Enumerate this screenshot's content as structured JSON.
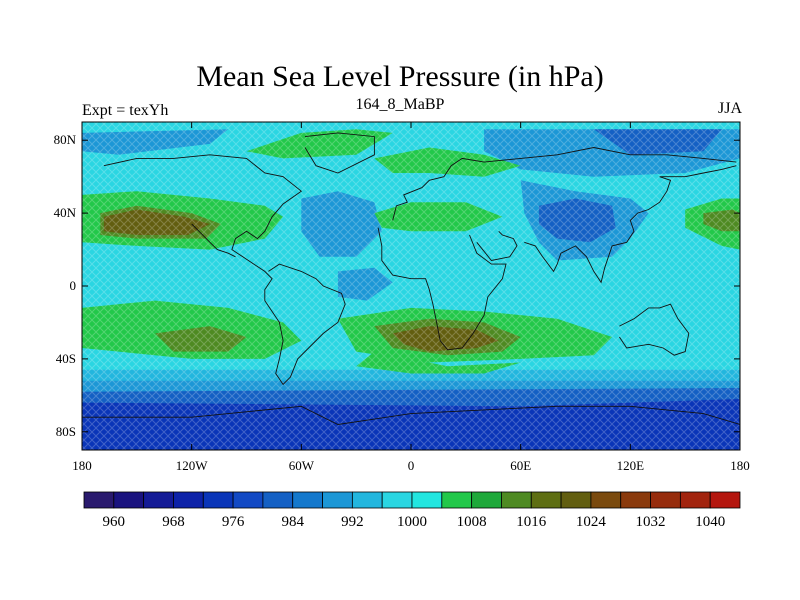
{
  "title": "Mean Sea Level Pressure (in hPa)",
  "left_label": "Expt = texYh",
  "center_label": "164_8_MaBP",
  "right_label": "JJA",
  "map": {
    "projection": "cylindrical-equidistant",
    "lon_range": [
      -180,
      180
    ],
    "lat_range": [
      -90,
      90
    ],
    "x_ticks": [
      {
        "value": -180,
        "label": "180"
      },
      {
        "value": -120,
        "label": "120W"
      },
      {
        "value": -60,
        "label": "60W"
      },
      {
        "value": 0,
        "label": "0"
      },
      {
        "value": 60,
        "label": "60E"
      },
      {
        "value": 120,
        "label": "120E"
      },
      {
        "value": 180,
        "label": "180"
      }
    ],
    "y_ticks": [
      {
        "value": 80,
        "label": "80N"
      },
      {
        "value": 40,
        "label": "40N"
      },
      {
        "value": 0,
        "label": "0"
      },
      {
        "value": -40,
        "label": "40S"
      },
      {
        "value": -80,
        "label": "80S"
      }
    ]
  },
  "colorbar": {
    "min": 956,
    "max": 1044,
    "step": 4,
    "colors": [
      "#2a1a6e",
      "#1a137f",
      "#141b96",
      "#0d22a8",
      "#0a35b8",
      "#1249c4",
      "#1460c4",
      "#1478cc",
      "#1c97d6",
      "#22b6de",
      "#2ad6e2",
      "#22e6e0",
      "#22c84a",
      "#1ea83a",
      "#4e8a22",
      "#5e6e12",
      "#625e10",
      "#7a4a0e",
      "#8a3a0c",
      "#962c0c",
      "#a2240e",
      "#b4160e"
    ],
    "labels": [
      {
        "value": 960,
        "label": "960"
      },
      {
        "value": 968,
        "label": "968"
      },
      {
        "value": 976,
        "label": "976"
      },
      {
        "value": 984,
        "label": "984"
      },
      {
        "value": 992,
        "label": "992"
      },
      {
        "value": 1000,
        "label": "1000"
      },
      {
        "value": 1008,
        "label": "1008"
      },
      {
        "value": 1016,
        "label": "1016"
      },
      {
        "value": 1024,
        "label": "1024"
      },
      {
        "value": 1032,
        "label": "1032"
      },
      {
        "value": 1040,
        "label": "1040"
      }
    ]
  },
  "pressure_field": [
    {
      "level": 996,
      "regions": [
        [
          [
            -180,
            90
          ],
          [
            180,
            90
          ],
          [
            180,
            -90
          ],
          [
            -180,
            -90
          ]
        ]
      ]
    },
    {
      "level": 992,
      "regions": [
        [
          [
            -180,
            -46
          ],
          [
            180,
            -46
          ],
          [
            180,
            -90
          ],
          [
            -180,
            -90
          ]
        ]
      ]
    },
    {
      "level": 988,
      "regions": [
        [
          [
            -180,
            -52
          ],
          [
            180,
            -52
          ],
          [
            180,
            -90
          ],
          [
            -180,
            -90
          ]
        ]
      ]
    },
    {
      "level": 980,
      "regions": [
        [
          [
            -180,
            -58
          ],
          [
            180,
            -56
          ],
          [
            180,
            -90
          ],
          [
            -180,
            -90
          ]
        ]
      ]
    },
    {
      "level": 972,
      "regions": [
        [
          [
            -180,
            -64
          ],
          [
            60,
            -66
          ],
          [
            180,
            -62
          ],
          [
            180,
            -90
          ],
          [
            -180,
            -90
          ]
        ]
      ]
    },
    {
      "level": 988,
      "regions": [
        [
          [
            -180,
            84
          ],
          [
            -100,
            86
          ],
          [
            -110,
            78
          ],
          [
            -160,
            72
          ],
          [
            -180,
            74
          ]
        ],
        [
          [
            40,
            86
          ],
          [
            180,
            86
          ],
          [
            180,
            70
          ],
          [
            150,
            62
          ],
          [
            100,
            60
          ],
          [
            60,
            64
          ],
          [
            40,
            74
          ]
        ],
        [
          [
            60,
            58
          ],
          [
            90,
            52
          ],
          [
            120,
            48
          ],
          [
            130,
            40
          ],
          [
            120,
            26
          ],
          [
            110,
            16
          ],
          [
            80,
            14
          ],
          [
            70,
            24
          ],
          [
            62,
            40
          ]
        ],
        [
          [
            -60,
            48
          ],
          [
            -40,
            52
          ],
          [
            -20,
            46
          ],
          [
            -16,
            30
          ],
          [
            -30,
            16
          ],
          [
            -50,
            16
          ],
          [
            -60,
            30
          ]
        ],
        [
          [
            -40,
            8
          ],
          [
            -20,
            10
          ],
          [
            -10,
            2
          ],
          [
            -24,
            -8
          ],
          [
            -40,
            -6
          ]
        ]
      ]
    },
    {
      "level": 980,
      "regions": [
        [
          [
            70,
            44
          ],
          [
            90,
            48
          ],
          [
            110,
            44
          ],
          [
            112,
            32
          ],
          [
            98,
            24
          ],
          [
            80,
            26
          ],
          [
            70,
            34
          ]
        ],
        [
          [
            100,
            86
          ],
          [
            170,
            86
          ],
          [
            160,
            74
          ],
          [
            120,
            72
          ]
        ]
      ]
    },
    {
      "level": 1004,
      "regions": [
        [
          [
            -180,
            50
          ],
          [
            -150,
            52
          ],
          [
            -110,
            48
          ],
          [
            -80,
            44
          ],
          [
            -70,
            38
          ],
          [
            -80,
            26
          ],
          [
            -110,
            20
          ],
          [
            -150,
            22
          ],
          [
            -180,
            24
          ]
        ],
        [
          [
            150,
            42
          ],
          [
            170,
            48
          ],
          [
            180,
            48
          ],
          [
            180,
            20
          ],
          [
            170,
            22
          ],
          [
            150,
            32
          ]
        ],
        [
          [
            -60,
            84
          ],
          [
            -30,
            86
          ],
          [
            -10,
            84
          ],
          [
            -30,
            72
          ],
          [
            -70,
            70
          ],
          [
            -90,
            74
          ]
        ],
        [
          [
            -20,
            70
          ],
          [
            10,
            76
          ],
          [
            40,
            72
          ],
          [
            60,
            66
          ],
          [
            40,
            60
          ],
          [
            10,
            62
          ],
          [
            -10,
            62
          ]
        ],
        [
          [
            -20,
            40
          ],
          [
            0,
            46
          ],
          [
            30,
            46
          ],
          [
            50,
            38
          ],
          [
            30,
            30
          ],
          [
            0,
            30
          ],
          [
            -16,
            32
          ]
        ],
        [
          [
            -180,
            -12
          ],
          [
            -140,
            -8
          ],
          [
            -100,
            -12
          ],
          [
            -70,
            -20
          ],
          [
            -60,
            -30
          ],
          [
            -80,
            -40
          ],
          [
            -120,
            -40
          ],
          [
            -160,
            -36
          ],
          [
            -180,
            -34
          ]
        ],
        [
          [
            -40,
            -18
          ],
          [
            0,
            -12
          ],
          [
            40,
            -14
          ],
          [
            80,
            -18
          ],
          [
            110,
            -28
          ],
          [
            100,
            -38
          ],
          [
            60,
            -40
          ],
          [
            10,
            -42
          ],
          [
            -30,
            -36
          ]
        ],
        [
          [
            -20,
            -36
          ],
          [
            20,
            -44
          ],
          [
            60,
            -42
          ],
          [
            40,
            -48
          ],
          [
            0,
            -48
          ],
          [
            -30,
            -44
          ]
        ]
      ]
    },
    {
      "level": 1012,
      "regions": [
        [
          [
            -170,
            40
          ],
          [
            -150,
            44
          ],
          [
            -120,
            40
          ],
          [
            -104,
            34
          ],
          [
            -112,
            26
          ],
          [
            -150,
            26
          ],
          [
            -170,
            28
          ]
        ],
        [
          [
            -140,
            -26
          ],
          [
            -110,
            -22
          ],
          [
            -90,
            -28
          ],
          [
            -100,
            -36
          ],
          [
            -130,
            -36
          ]
        ],
        [
          [
            -20,
            -22
          ],
          [
            10,
            -18
          ],
          [
            40,
            -20
          ],
          [
            60,
            -28
          ],
          [
            50,
            -36
          ],
          [
            20,
            -38
          ],
          [
            -10,
            -34
          ]
        ]
      ]
    },
    {
      "level": 1020,
      "regions": [
        [
          [
            -168,
            38
          ],
          [
            -150,
            42
          ],
          [
            -124,
            38
          ],
          [
            -110,
            34
          ],
          [
            -122,
            28
          ],
          [
            -150,
            28
          ],
          [
            -168,
            30
          ]
        ],
        [
          [
            -10,
            -26
          ],
          [
            10,
            -22
          ],
          [
            36,
            -24
          ],
          [
            48,
            -30
          ],
          [
            36,
            -34
          ],
          [
            10,
            -36
          ],
          [
            -4,
            -32
          ]
        ]
      ]
    },
    {
      "level": 1012,
      "regions": [
        [
          [
            160,
            40
          ],
          [
            176,
            42
          ],
          [
            180,
            40
          ],
          [
            180,
            30
          ],
          [
            170,
            30
          ],
          [
            160,
            34
          ]
        ]
      ]
    }
  ],
  "coastlines": [
    [
      [
        -168,
        66
      ],
      [
        -150,
        70
      ],
      [
        -130,
        70
      ],
      [
        -110,
        72
      ],
      [
        -90,
        70
      ],
      [
        -80,
        62
      ],
      [
        -70,
        60
      ],
      [
        -60,
        52
      ],
      [
        -70,
        45
      ],
      [
        -76,
        38
      ],
      [
        -80,
        30
      ],
      [
        -84,
        26
      ],
      [
        -90,
        30
      ],
      [
        -96,
        26
      ],
      [
        -98,
        20
      ],
      [
        -92,
        16
      ],
      [
        -86,
        12
      ],
      [
        -80,
        8
      ],
      [
        -76,
        4
      ],
      [
        -80,
        -2
      ],
      [
        -80,
        -8
      ],
      [
        -76,
        -14
      ],
      [
        -72,
        -20
      ],
      [
        -70,
        -30
      ],
      [
        -72,
        -40
      ],
      [
        -74,
        -48
      ],
      [
        -70,
        -54
      ],
      [
        -66,
        -50
      ],
      [
        -62,
        -40
      ],
      [
        -56,
        -34
      ],
      [
        -48,
        -26
      ],
      [
        -40,
        -20
      ],
      [
        -36,
        -10
      ],
      [
        -38,
        -4
      ],
      [
        -48,
        0
      ],
      [
        -52,
        4
      ],
      [
        -60,
        8
      ],
      [
        -72,
        12
      ],
      [
        -78,
        8
      ]
    ],
    [
      [
        -120,
        34
      ],
      [
        -116,
        30
      ],
      [
        -110,
        24
      ],
      [
        -106,
        20
      ],
      [
        -100,
        18
      ],
      [
        -96,
        16
      ]
    ],
    [
      [
        -58,
        82
      ],
      [
        -40,
        84
      ],
      [
        -20,
        82
      ],
      [
        -20,
        72
      ],
      [
        -40,
        62
      ],
      [
        -52,
        66
      ],
      [
        -58,
        76
      ]
    ],
    [
      [
        -10,
        36
      ],
      [
        -8,
        44
      ],
      [
        -2,
        46
      ],
      [
        -4,
        50
      ],
      [
        6,
        54
      ],
      [
        10,
        58
      ],
      [
        18,
        60
      ],
      [
        22,
        66
      ],
      [
        28,
        70
      ],
      [
        40,
        68
      ],
      [
        60,
        70
      ],
      [
        80,
        72
      ],
      [
        100,
        76
      ],
      [
        120,
        72
      ],
      [
        140,
        72
      ],
      [
        160,
        70
      ],
      [
        178,
        68
      ]
    ],
    [
      [
        -18,
        32
      ],
      [
        -16,
        22
      ],
      [
        -16,
        14
      ],
      [
        -10,
        6
      ],
      [
        0,
        4
      ],
      [
        8,
        4
      ],
      [
        10,
        -2
      ],
      [
        12,
        -10
      ],
      [
        14,
        -20
      ],
      [
        16,
        -30
      ],
      [
        20,
        -35
      ],
      [
        28,
        -34
      ],
      [
        34,
        -26
      ],
      [
        40,
        -16
      ],
      [
        42,
        -6
      ],
      [
        50,
        4
      ],
      [
        52,
        12
      ],
      [
        44,
        12
      ],
      [
        36,
        18
      ],
      [
        32,
        28
      ]
    ],
    [
      [
        36,
        24
      ],
      [
        44,
        14
      ],
      [
        54,
        16
      ],
      [
        58,
        22
      ],
      [
        56,
        26
      ],
      [
        50,
        28
      ],
      [
        48,
        30
      ]
    ],
    [
      [
        62,
        24
      ],
      [
        68,
        22
      ],
      [
        72,
        16
      ],
      [
        78,
        8
      ],
      [
        80,
        12
      ],
      [
        82,
        18
      ],
      [
        90,
        22
      ],
      [
        96,
        16
      ],
      [
        100,
        8
      ],
      [
        104,
        2
      ],
      [
        106,
        10
      ],
      [
        108,
        16
      ],
      [
        110,
        22
      ],
      [
        118,
        24
      ],
      [
        122,
        30
      ],
      [
        120,
        36
      ],
      [
        124,
        40
      ],
      [
        130,
        42
      ],
      [
        136,
        46
      ],
      [
        140,
        52
      ],
      [
        142,
        58
      ],
      [
        136,
        60
      ],
      [
        150,
        60
      ],
      [
        160,
        62
      ],
      [
        170,
        64
      ],
      [
        178,
        66
      ]
    ],
    [
      [
        114,
        -22
      ],
      [
        122,
        -18
      ],
      [
        130,
        -12
      ],
      [
        136,
        -12
      ],
      [
        142,
        -10
      ],
      [
        146,
        -18
      ],
      [
        152,
        -26
      ],
      [
        150,
        -36
      ],
      [
        144,
        -38
      ],
      [
        138,
        -34
      ],
      [
        130,
        -32
      ],
      [
        118,
        -34
      ],
      [
        114,
        -28
      ]
    ],
    [
      [
        -180,
        -72
      ],
      [
        -120,
        -72
      ],
      [
        -60,
        -66
      ],
      [
        -40,
        -76
      ],
      [
        0,
        -70
      ],
      [
        40,
        -68
      ],
      [
        80,
        -66
      ],
      [
        120,
        -66
      ],
      [
        160,
        -70
      ],
      [
        180,
        -76
      ]
    ]
  ]
}
